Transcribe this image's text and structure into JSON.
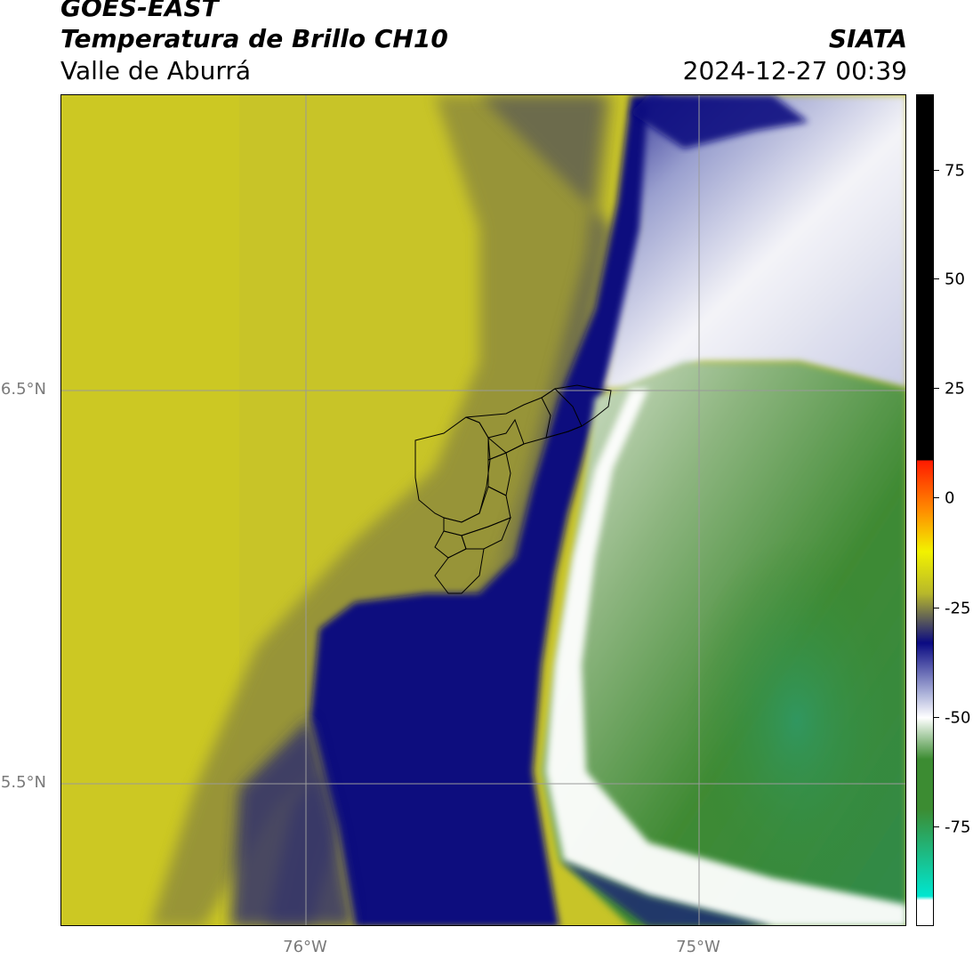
{
  "header": {
    "satellite": "GOES-EAST",
    "product": "Temperatura de Brillo CH10",
    "region": "Valle de Aburrá",
    "organization": "SIATA",
    "datetime": "2024-12-27 00:39"
  },
  "map": {
    "lat_labels": [
      "6.5°N",
      "5.5°N"
    ],
    "lon_labels": [
      "76°W",
      "75°W"
    ]
  },
  "colorbar": {
    "ticks": [
      "75",
      "50",
      "25",
      "0",
      "-25",
      "-50",
      "-75"
    ],
    "colors": {
      "black": "#000000",
      "red": "#ff1a00",
      "orange": "#ff8c00",
      "yellow": "#f2f200",
      "olive": "#b8b82a",
      "navy": "#0a0a82",
      "lavender": "#aab0d8",
      "white": "#ffffff",
      "green": "#3c8c32",
      "cyan": "#00e6d0"
    }
  }
}
